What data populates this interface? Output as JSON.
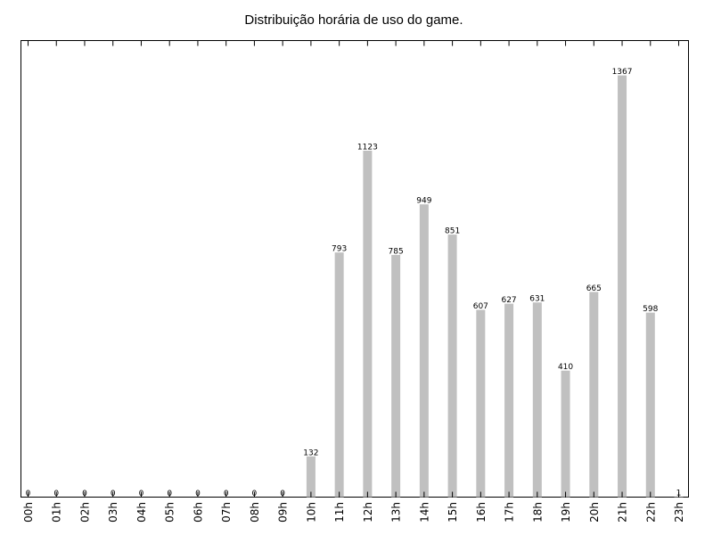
{
  "chart_data": {
    "type": "bar",
    "title": "Distribuição horária de uso do game.",
    "xlabel": "",
    "ylabel": "",
    "categories": [
      "00h",
      "01h",
      "02h",
      "03h",
      "04h",
      "05h",
      "06h",
      "07h",
      "08h",
      "09h",
      "10h",
      "11h",
      "12h",
      "13h",
      "14h",
      "15h",
      "16h",
      "17h",
      "18h",
      "19h",
      "20h",
      "21h",
      "22h",
      "23h"
    ],
    "values": [
      0,
      0,
      0,
      0,
      0,
      0,
      0,
      0,
      0,
      0,
      132,
      793,
      1123,
      785,
      949,
      851,
      607,
      627,
      631,
      410,
      665,
      1367,
      598,
      1
    ],
    "ylim": [
      0,
      1480
    ],
    "grid": false,
    "legend": "none",
    "bar_color": "#c0c0c0"
  }
}
